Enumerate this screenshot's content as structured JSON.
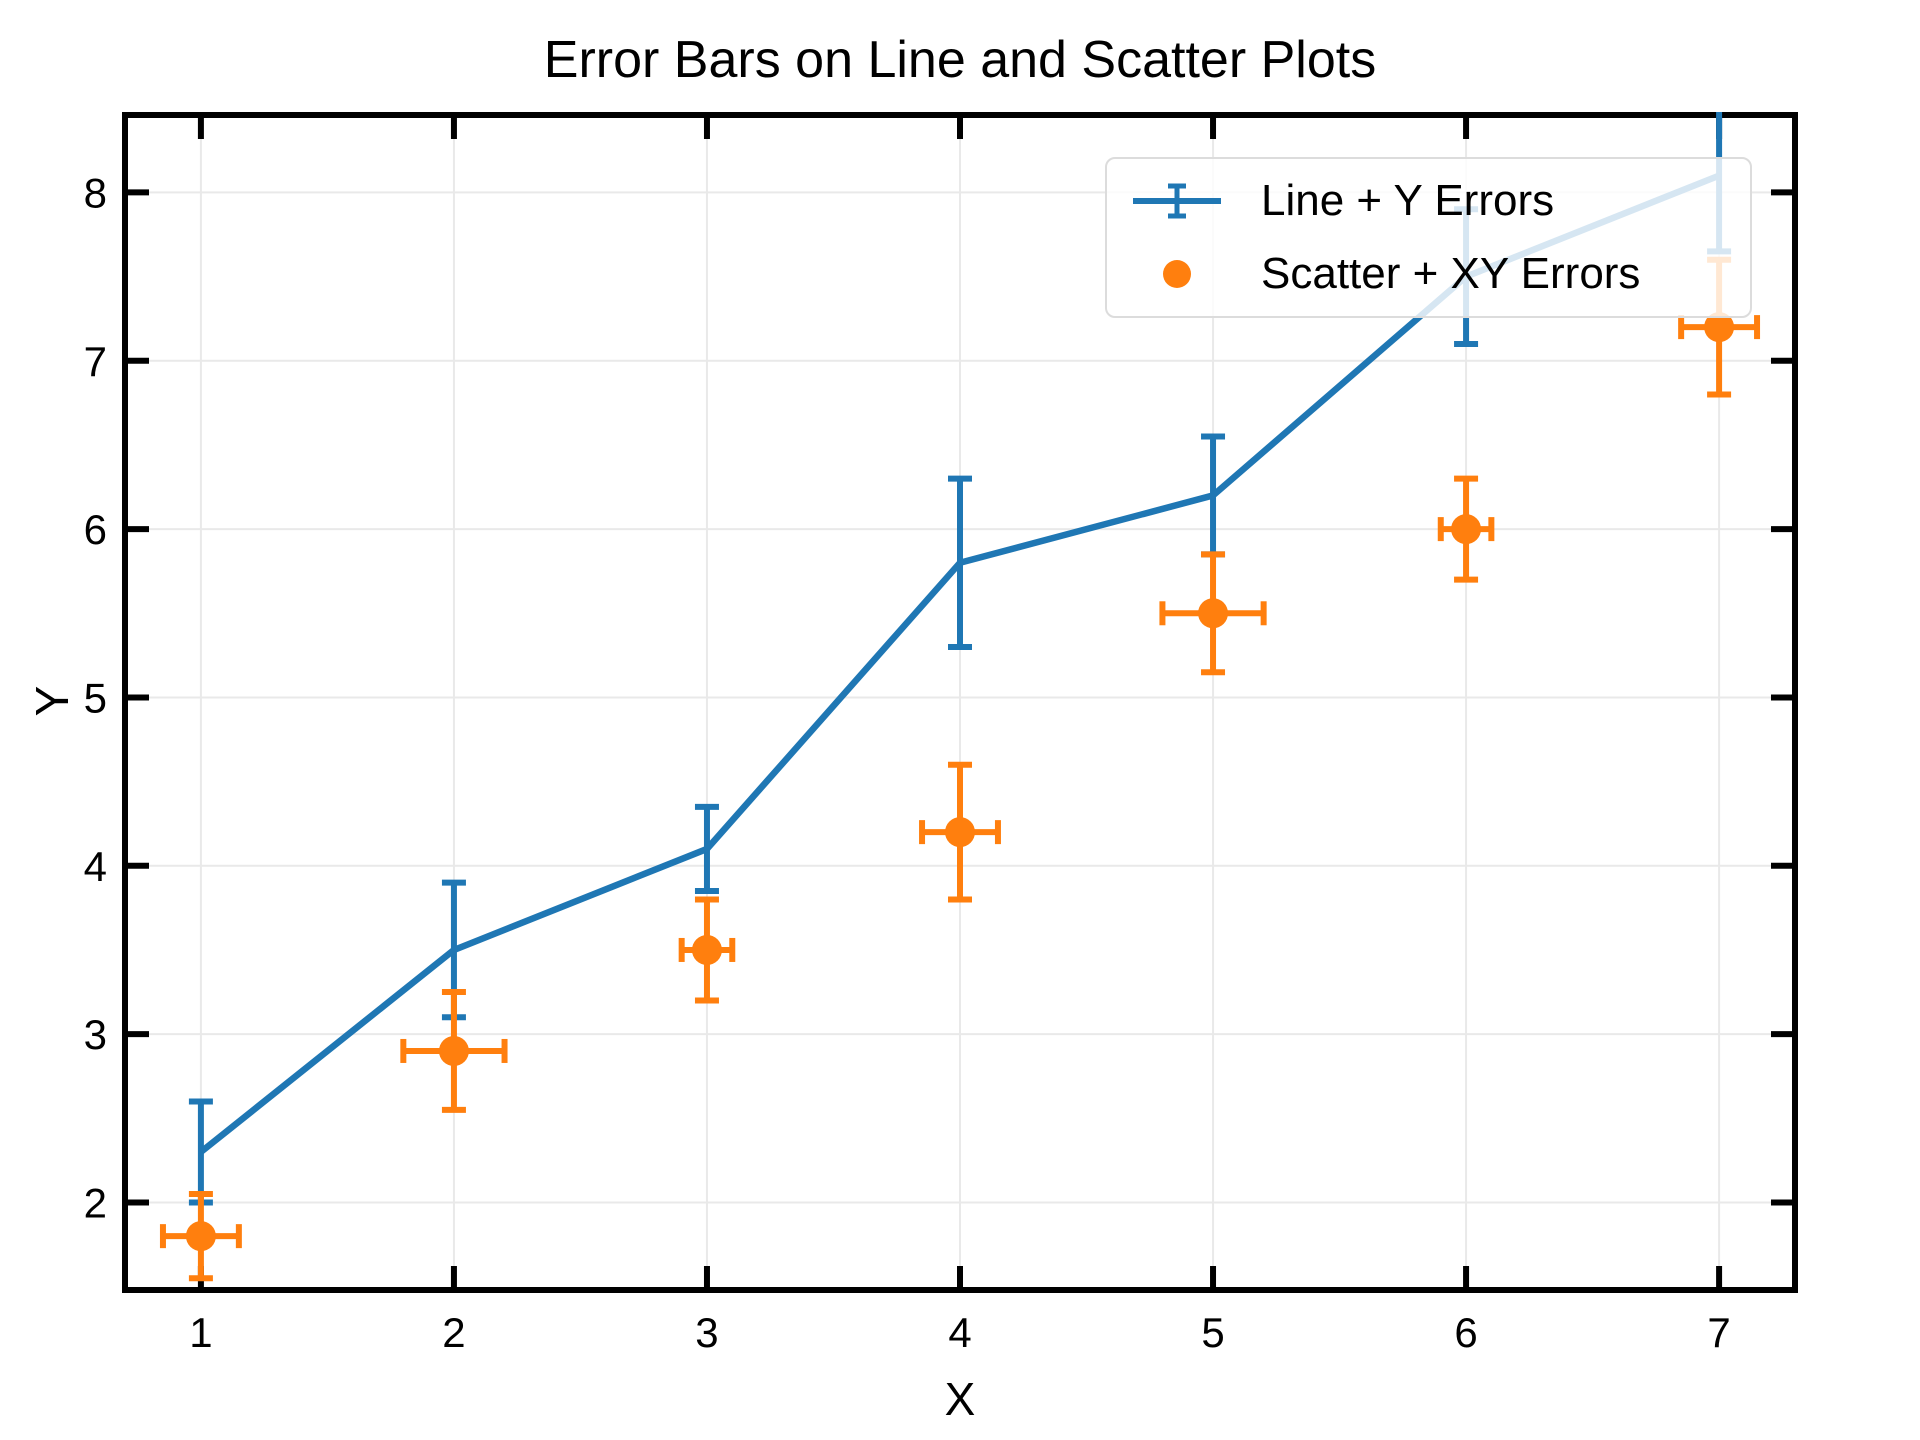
{
  "chart_data": {
    "type": "line+scatter",
    "title": "Error Bars on Line and Scatter Plots",
    "xlabel": "X",
    "ylabel": "Y",
    "x": [
      1,
      2,
      3,
      4,
      5,
      6,
      7
    ],
    "series": [
      {
        "name": "Line + Y Errors",
        "style": "line",
        "color": "#1f77b4",
        "y": [
          2.3,
          3.5,
          4.1,
          5.8,
          6.2,
          7.5,
          8.1
        ],
        "yerr": [
          0.3,
          0.4,
          0.25,
          0.5,
          0.35,
          0.4,
          0.45
        ]
      },
      {
        "name": "Scatter + XY Errors",
        "style": "scatter",
        "color": "#ff7f0e",
        "y": [
          1.8,
          2.9,
          3.5,
          4.2,
          5.5,
          6.0,
          7.2
        ],
        "yerr": [
          0.25,
          0.35,
          0.3,
          0.4,
          0.35,
          0.3,
          0.4
        ],
        "xerr": [
          0.15,
          0.2,
          0.1,
          0.15,
          0.2,
          0.1,
          0.15
        ]
      }
    ],
    "xticks": [
      1,
      2,
      3,
      4,
      5,
      6,
      7
    ],
    "yticks": [
      2,
      3,
      4,
      5,
      6,
      7,
      8
    ],
    "xlim": [
      0.7,
      7.3
    ],
    "ylim": [
      1.48,
      8.46
    ],
    "grid": true,
    "grid_color": "#e9e9e9",
    "spine_color": "#000000",
    "background_color": "#ffffff",
    "legend_border_color": "#dcdcdc",
    "legend_position": "upper right"
  }
}
